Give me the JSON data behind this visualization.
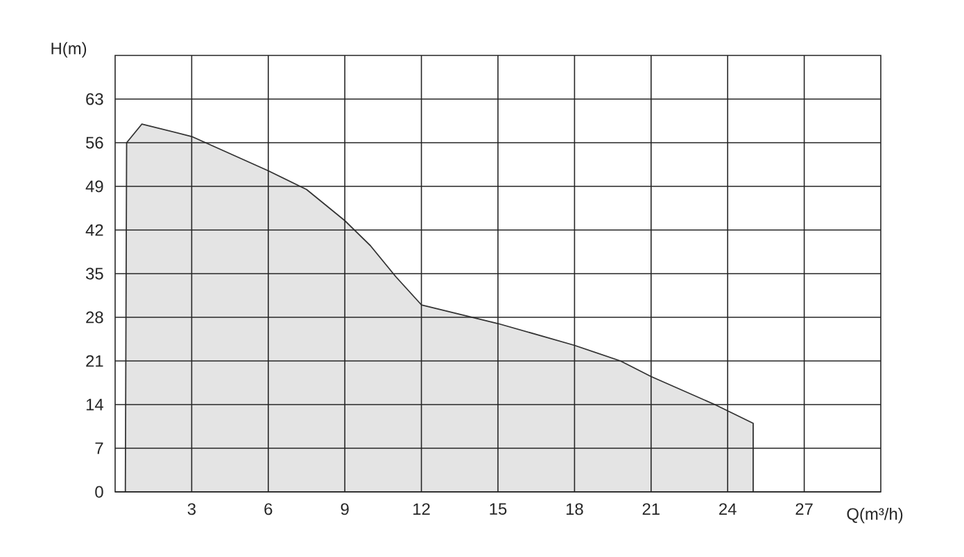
{
  "chart_data": {
    "type": "area",
    "xlabel": "Q(m³/h)",
    "ylabel": "H(m)",
    "x": [
      0.4,
      0.45,
      1.05,
      3,
      6,
      7.5,
      9,
      10,
      11,
      12,
      14.5,
      15,
      18,
      19.8,
      21,
      23.5,
      25,
      25
    ],
    "values": [
      0,
      56,
      59,
      57,
      51.5,
      48.5,
      43.5,
      39.5,
      34.5,
      30,
      27.5,
      27,
      23.5,
      21,
      18.5,
      14,
      11,
      0
    ],
    "color": "#e4e4e4",
    "xlim": [
      0,
      30
    ],
    "ylim": [
      0,
      70
    ],
    "xticks": [
      3,
      6,
      9,
      12,
      15,
      18,
      21,
      24,
      27
    ],
    "yticks": [
      0,
      7,
      14,
      21,
      28,
      35,
      42,
      49,
      56,
      63
    ],
    "grid": true
  }
}
